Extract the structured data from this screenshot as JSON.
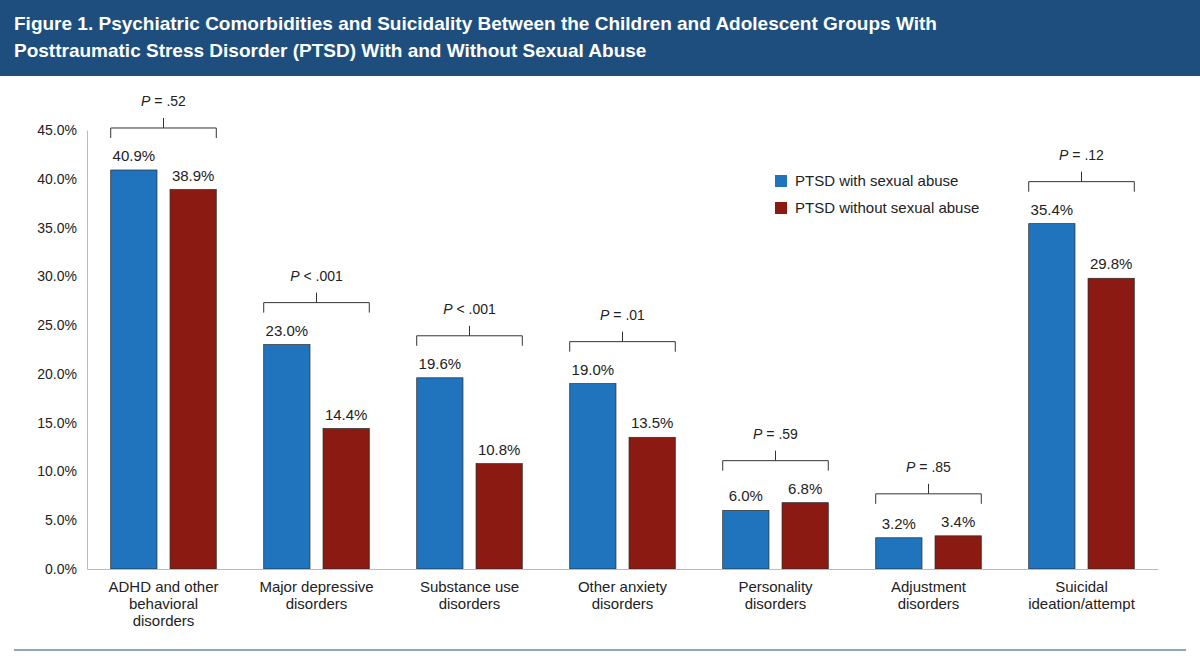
{
  "chart_data": {
    "type": "bar",
    "title": "Figure 1. Psychiatric Comorbidities and Suicidality Between the Children and Adolescent Groups With Posttraumatic Stress Disorder (PTSD) With and Without Sexual Abuse",
    "categories": [
      "ADHD and other behavioral disorders",
      "Major depressive disorders",
      "Substance use disorders",
      "Other anxiety disorders",
      "Personality disorders",
      "Adjustment disorders",
      "Suicidal ideation/attempt"
    ],
    "series": [
      {
        "name": "PTSD with sexual abuse",
        "color": "#1f74bd",
        "values": [
          40.9,
          23.0,
          19.6,
          19.0,
          6.0,
          3.2,
          35.4
        ],
        "value_labels": [
          "40.9%",
          "23.0%",
          "19.6%",
          "19.0%",
          "6.0%",
          "3.2%",
          "35.4%"
        ]
      },
      {
        "name": "PTSD without sexual abuse",
        "color": "#8b1a12",
        "values": [
          38.9,
          14.4,
          10.8,
          13.5,
          6.8,
          3.4,
          29.8
        ],
        "value_labels": [
          "38.9%",
          "14.4%",
          "10.8%",
          "13.5%",
          "6.8%",
          "3.4%",
          "29.8%"
        ]
      }
    ],
    "annotations": [
      "P = .52",
      "P < .001",
      "P < .001",
      "P = .01",
      "P = .59",
      "P = .85",
      "P = .12"
    ],
    "ylim": [
      0,
      45
    ],
    "yticks": [
      {
        "value": 0,
        "label": "0.0%"
      },
      {
        "value": 5,
        "label": "5.0%"
      },
      {
        "value": 10,
        "label": "10.0%"
      },
      {
        "value": 15,
        "label": "15.0%"
      },
      {
        "value": 20,
        "label": "20.0%"
      },
      {
        "value": 25,
        "label": "25.0%"
      },
      {
        "value": 30,
        "label": "30.0%"
      },
      {
        "value": 35,
        "label": "35.0%"
      },
      {
        "value": 40,
        "label": "40.0%"
      },
      {
        "value": 45,
        "label": "45.0%"
      }
    ],
    "grid": false,
    "legend": "upper right",
    "data_labels": true
  }
}
